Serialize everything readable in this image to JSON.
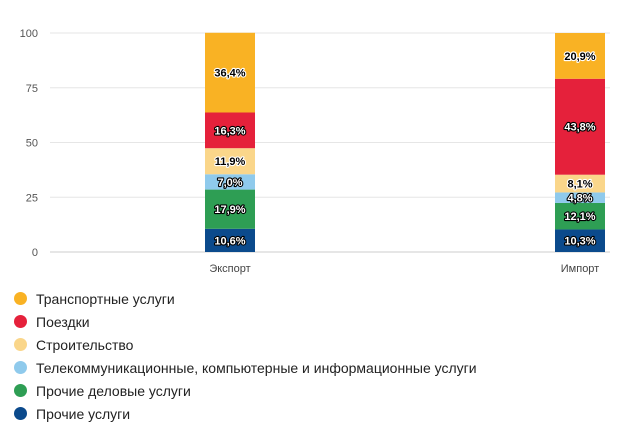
{
  "chart_data": {
    "type": "bar",
    "stacked": true,
    "categories": [
      "Экспорт",
      "Импорт"
    ],
    "ylim": [
      0,
      100
    ],
    "yticks": [
      0,
      25,
      50,
      75,
      100
    ],
    "grid": true,
    "legend_position": "bottom",
    "series": [
      {
        "name": "Прочие услуги",
        "color": "#0b4a8c",
        "values": [
          10.6,
          10.3
        ],
        "labels": [
          "10,6%",
          "10,3%"
        ],
        "label_style": "light"
      },
      {
        "name": "Прочие деловые услуги",
        "color": "#2e9e54",
        "values": [
          17.9,
          12.1
        ],
        "labels": [
          "17,9%",
          "12,1%"
        ],
        "label_style": "light"
      },
      {
        "name": "Телекоммуникационные, компьютерные и информационные услуги",
        "color": "#8fcaec",
        "values": [
          7.0,
          4.8
        ],
        "labels": [
          "7,0%",
          "4,8%"
        ],
        "label_style": "light"
      },
      {
        "name": "Строительство",
        "color": "#fad68a",
        "values": [
          11.9,
          8.1
        ],
        "labels": [
          "11,9%",
          "8,1%"
        ],
        "label_style": "dark"
      },
      {
        "name": "Поездки",
        "color": "#e5213b",
        "values": [
          16.3,
          43.8
        ],
        "labels": [
          "16,3%",
          "43,8%"
        ],
        "label_style": "light"
      },
      {
        "name": "Транспортные услуги",
        "color": "#f9b224",
        "values": [
          36.4,
          20.9
        ],
        "labels": [
          "36,4%",
          "20,9%"
        ],
        "label_style": "dark"
      }
    ],
    "legend_order": [
      5,
      4,
      3,
      2,
      1,
      0
    ]
  }
}
